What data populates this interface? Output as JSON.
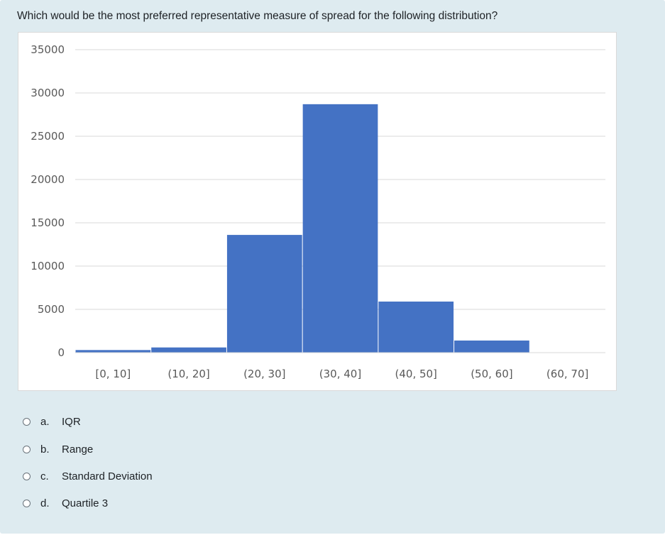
{
  "question": {
    "text": "Which would be the most preferred representative measure of spread for the following distribution?"
  },
  "chart_data": {
    "type": "bar",
    "categories": [
      "[0, 10]",
      "(10, 20]",
      "(20, 30]",
      "(30, 40]",
      "(40, 50]",
      "(50, 60]",
      "(60, 70]"
    ],
    "values": [
      300,
      600,
      13600,
      28700,
      5900,
      1400,
      0
    ],
    "title": "",
    "xlabel": "",
    "ylabel": "",
    "ylim": [
      0,
      35000
    ],
    "yticks": [
      0,
      5000,
      10000,
      15000,
      20000,
      25000,
      30000,
      35000
    ],
    "grid": true,
    "bar_color": "#4472c4",
    "grid_color": "#d9d9d9"
  },
  "options": [
    {
      "letter": "a.",
      "text": "IQR"
    },
    {
      "letter": "b.",
      "text": "Range"
    },
    {
      "letter": "c.",
      "text": "Standard Deviation"
    },
    {
      "letter": "d.",
      "text": "Quartile 3"
    }
  ]
}
